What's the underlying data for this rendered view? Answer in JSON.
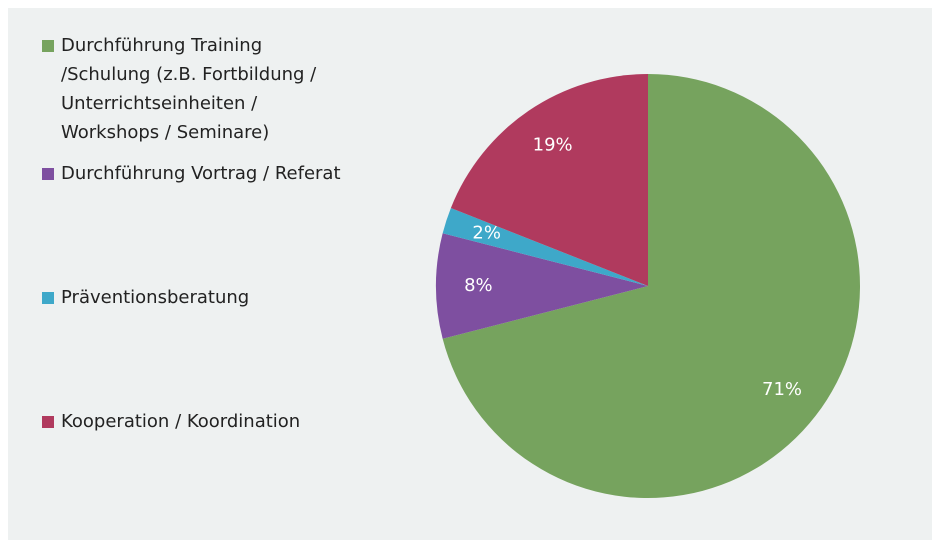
{
  "chart_data": {
    "type": "pie",
    "categories": [
      "Durchführung Training /Schulung (z.B. Fortbildung / Unterrichtseinheiten / Workshops / Seminare)",
      "Durchführung Vortrag / Referat",
      "Präventionsberatung",
      "Kooperation / Koordination"
    ],
    "values": [
      71,
      8,
      2,
      19
    ],
    "value_labels": [
      "71%",
      "8%",
      "2%",
      "19%"
    ],
    "colors": [
      "#76a35e",
      "#7e4fa0",
      "#3ea8c9",
      "#b03a5e"
    ],
    "legend": "left"
  }
}
